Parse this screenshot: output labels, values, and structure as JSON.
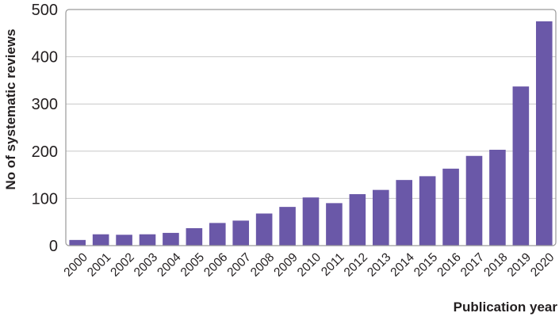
{
  "chart_data": {
    "type": "bar",
    "categories": [
      "2000",
      "2001",
      "2002",
      "2003",
      "2004",
      "2005",
      "2006",
      "2007",
      "2008",
      "2009",
      "2010",
      "2011",
      "2012",
      "2013",
      "2014",
      "2015",
      "2016",
      "2017",
      "2018",
      "2019",
      "2020"
    ],
    "values": [
      12,
      24,
      23,
      24,
      27,
      37,
      48,
      53,
      68,
      82,
      102,
      90,
      109,
      118,
      139,
      147,
      163,
      190,
      203,
      337,
      475
    ],
    "title": "",
    "xlabel": "Publication year",
    "ylabel": "No of systematic reviews",
    "ylim": [
      0,
      500
    ],
    "yticks": [
      0,
      100,
      200,
      300,
      400,
      500
    ],
    "grid": "horizontal",
    "legend": "none",
    "colors": {
      "bar": "#6a58a8",
      "grid": "#c8c8c8",
      "frame": "#9a9a9a",
      "text": "#231f20"
    }
  }
}
